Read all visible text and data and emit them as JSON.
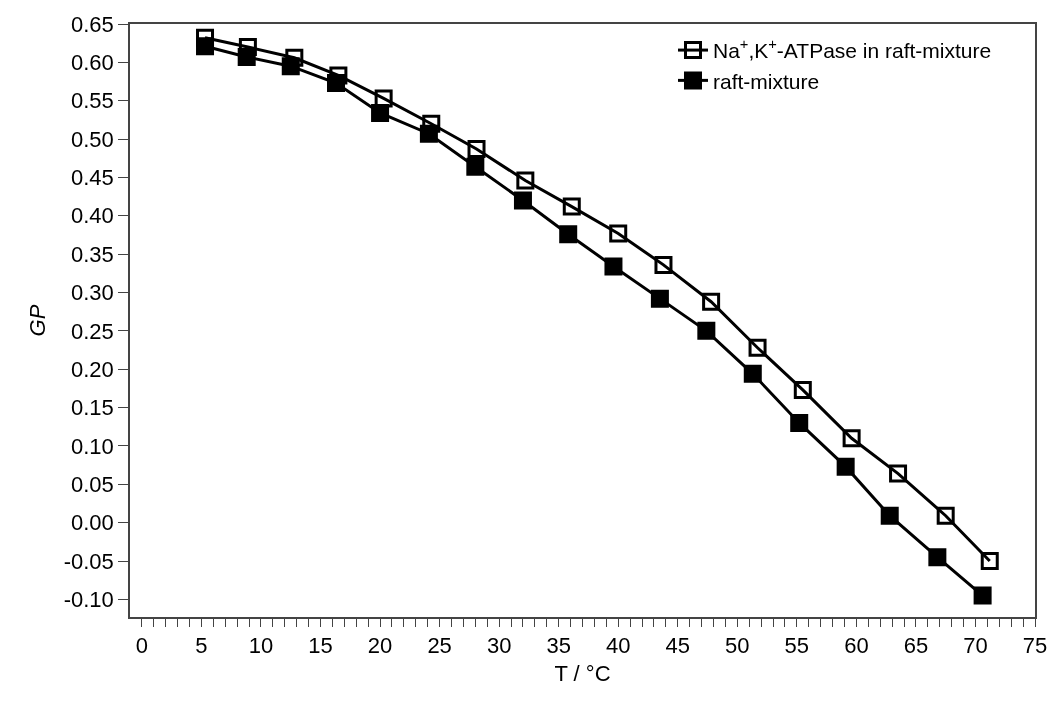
{
  "chart_data": {
    "type": "line",
    "xlabel": "T / °C",
    "ylabel": "GP",
    "line_style": "solid",
    "grid": false,
    "legend": "top right",
    "xlim": [
      -1,
      75
    ],
    "ylim": [
      -0.123,
      0.65
    ],
    "xticks": [
      0,
      {
        "value": 1,
        "label": null
      },
      {
        "value": 2,
        "label": null
      },
      {
        "value": 3,
        "label": null
      },
      {
        "value": 4,
        "label": null
      },
      5,
      {
        "value": 6,
        "label": null
      },
      {
        "value": 7,
        "label": null
      },
      {
        "value": 8,
        "label": null
      },
      {
        "value": 9,
        "label": null
      },
      10,
      {
        "value": 11,
        "label": null
      },
      {
        "value": 12,
        "label": null
      },
      {
        "value": 13,
        "label": null
      },
      {
        "value": 14,
        "label": null
      },
      15,
      {
        "value": 16,
        "label": null
      },
      {
        "value": 17,
        "label": null
      },
      {
        "value": 18,
        "label": null
      },
      {
        "value": 19,
        "label": null
      },
      20,
      {
        "value": 21,
        "label": null
      },
      {
        "value": 22,
        "label": null
      },
      {
        "value": 23,
        "label": null
      },
      {
        "value": 24,
        "label": null
      },
      25,
      {
        "value": 26,
        "label": null
      },
      {
        "value": 27,
        "label": null
      },
      {
        "value": 28,
        "label": null
      },
      {
        "value": 29,
        "label": null
      },
      30,
      {
        "value": 31,
        "label": null
      },
      {
        "value": 32,
        "label": null
      },
      {
        "value": 33,
        "label": null
      },
      {
        "value": 34,
        "label": null
      },
      35,
      {
        "value": 36,
        "label": null
      },
      {
        "value": 37,
        "label": null
      },
      {
        "value": 38,
        "label": null
      },
      {
        "value": 39,
        "label": null
      },
      40,
      {
        "value": 41,
        "label": null
      },
      {
        "value": 42,
        "label": null
      },
      {
        "value": 43,
        "label": null
      },
      {
        "value": 44,
        "label": null
      },
      45,
      {
        "value": 46,
        "label": null
      },
      {
        "value": 47,
        "label": null
      },
      {
        "value": 48,
        "label": null
      },
      {
        "value": 49,
        "label": null
      },
      50,
      {
        "value": 51,
        "label": null
      },
      {
        "value": 52,
        "label": null
      },
      {
        "value": 53,
        "label": null
      },
      {
        "value": 54,
        "label": null
      },
      55,
      {
        "value": 56,
        "label": null
      },
      {
        "value": 57,
        "label": null
      },
      {
        "value": 58,
        "label": null
      },
      {
        "value": 59,
        "label": null
      },
      60,
      {
        "value": 61,
        "label": null
      },
      {
        "value": 62,
        "label": null
      },
      {
        "value": 63,
        "label": null
      },
      {
        "value": 64,
        "label": null
      },
      65,
      {
        "value": 66,
        "label": null
      },
      {
        "value": 67,
        "label": null
      },
      {
        "value": 68,
        "label": null
      },
      {
        "value": 69,
        "label": null
      },
      70,
      {
        "value": 71,
        "label": null
      },
      {
        "value": 72,
        "label": null
      },
      {
        "value": 73,
        "label": null
      },
      {
        "value": 74,
        "label": null
      },
      75
    ],
    "yticks": [
      {
        "value": -0.1,
        "label": "-0.10"
      },
      {
        "value": -0.05,
        "label": "-0.05"
      },
      {
        "value": 0,
        "label": "0.00"
      },
      {
        "value": 0.05,
        "label": "0.05"
      },
      {
        "value": 0.1,
        "label": "0.10"
      },
      {
        "value": 0.15,
        "label": "0.15"
      },
      {
        "value": 0.2,
        "label": "0.20"
      },
      {
        "value": 0.25,
        "label": "0.25"
      },
      {
        "value": 0.3,
        "label": "0.30"
      },
      {
        "value": 0.35,
        "label": "0.35"
      },
      {
        "value": 0.4,
        "label": "0.40"
      },
      {
        "value": 0.45,
        "label": "0.45"
      },
      {
        "value": 0.5,
        "label": "0.50"
      },
      {
        "value": 0.55,
        "label": "0.55"
      },
      {
        "value": 0.6,
        "label": "0.60"
      },
      {
        "value": 0.65,
        "label": "0.65"
      }
    ],
    "series": [
      {
        "name": "Na$^{+}$,K$^{+}$-ATPase in raft-mixture",
        "color": "#000000",
        "marker": "square-open",
        "x": [
          5.3,
          8.9,
          12.8,
          16.5,
          20.3,
          24.3,
          28.1,
          32.2,
          36.1,
          40.0,
          43.8,
          47.8,
          51.7,
          55.5,
          59.6,
          63.5,
          67.5,
          71.2
        ],
        "values": [
          0.632,
          0.62,
          0.606,
          0.583,
          0.553,
          0.52,
          0.487,
          0.446,
          0.412,
          0.377,
          0.336,
          0.288,
          0.228,
          0.173,
          0.11,
          0.064,
          0.009,
          -0.05
        ]
      },
      {
        "name": "raft-mixture",
        "color": "#000000",
        "marker": "square",
        "x": [
          5.3,
          8.8,
          12.5,
          16.3,
          20.0,
          24.1,
          28.0,
          32.0,
          35.8,
          39.6,
          43.5,
          47.4,
          51.3,
          55.2,
          59.1,
          62.8,
          66.8,
          70.6
        ],
        "values": [
          0.621,
          0.607,
          0.595,
          0.573,
          0.534,
          0.507,
          0.464,
          0.42,
          0.376,
          0.334,
          0.292,
          0.25,
          0.194,
          0.13,
          0.073,
          0.009,
          -0.045,
          -0.095
        ]
      }
    ]
  }
}
